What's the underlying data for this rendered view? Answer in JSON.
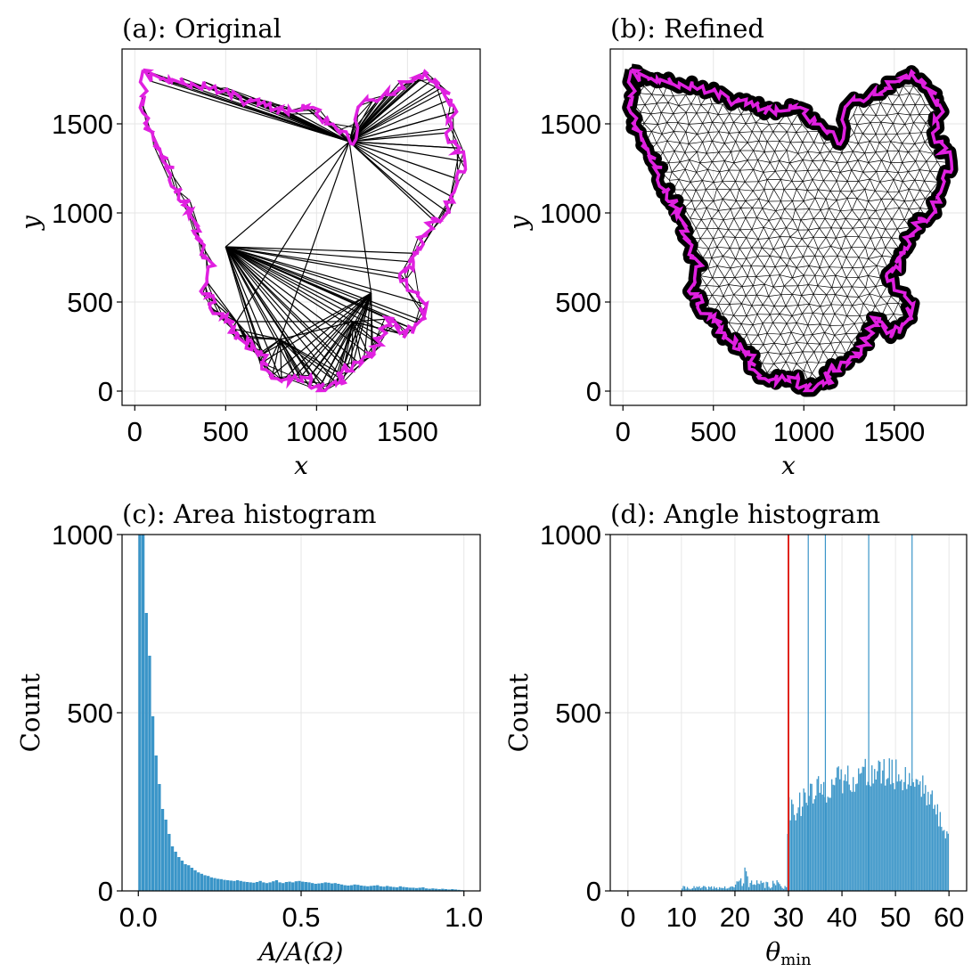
{
  "chart_data": [
    {
      "panel": "a",
      "type": "mesh",
      "title": "(a): Original",
      "xlabel": "x",
      "ylabel": "y",
      "xlim": [
        -70,
        1900
      ],
      "ylim": [
        -80,
        1920
      ],
      "xticks": [
        0,
        500,
        1000,
        1500
      ],
      "yticks": [
        0,
        500,
        1000,
        1500
      ],
      "boundary_color": "#e020e0",
      "edge_color": "#000000",
      "interior_points": [
        [
          1180,
          1400
        ],
        [
          500,
          810
        ],
        [
          1300,
          550
        ],
        [
          1200,
          390
        ],
        [
          560,
          390
        ],
        [
          800,
          290
        ]
      ]
    },
    {
      "panel": "b",
      "type": "mesh",
      "title": "(b): Refined",
      "xlabel": "x",
      "ylabel": "y",
      "xlim": [
        -70,
        1900
      ],
      "ylim": [
        -80,
        1920
      ],
      "xticks": [
        0,
        500,
        1000,
        1500
      ],
      "yticks": [
        0,
        500,
        1000,
        1500
      ],
      "boundary_color": "#e020e0",
      "edge_color": "#000000"
    },
    {
      "panel": "c",
      "type": "bar",
      "title": "(c): Area histogram",
      "xlabel": "A/A(Ω)",
      "ylabel": "Count",
      "xlim": [
        -0.05,
        1.05
      ],
      "ylim": [
        0,
        1000
      ],
      "xticks": [
        0.0,
        0.5,
        1.0
      ],
      "xtick_labels": [
        "0.0",
        "0.5",
        "1.0"
      ],
      "yticks": [
        0,
        500,
        1000
      ],
      "bar_color": "#3a95c8",
      "bin_width": 0.01,
      "x": [
        0.0,
        0.01,
        0.02,
        0.03,
        0.04,
        0.05,
        0.06,
        0.07,
        0.08,
        0.09,
        0.1,
        0.11,
        0.12,
        0.13,
        0.14,
        0.15,
        0.16,
        0.17,
        0.18,
        0.19,
        0.2,
        0.21,
        0.22,
        0.23,
        0.24,
        0.25,
        0.26,
        0.27,
        0.28,
        0.29,
        0.3,
        0.31,
        0.32,
        0.33,
        0.34,
        0.35,
        0.36,
        0.37,
        0.38,
        0.39,
        0.4,
        0.41,
        0.42,
        0.43,
        0.44,
        0.45,
        0.46,
        0.47,
        0.48,
        0.49,
        0.5,
        0.51,
        0.52,
        0.53,
        0.54,
        0.55,
        0.56,
        0.57,
        0.58,
        0.59,
        0.6,
        0.61,
        0.62,
        0.63,
        0.64,
        0.65,
        0.66,
        0.67,
        0.68,
        0.69,
        0.7,
        0.71,
        0.72,
        0.73,
        0.74,
        0.75,
        0.76,
        0.77,
        0.78,
        0.79,
        0.8,
        0.81,
        0.82,
        0.83,
        0.84,
        0.85,
        0.86,
        0.87,
        0.88,
        0.89,
        0.9,
        0.91,
        0.92,
        0.93,
        0.94,
        0.95,
        0.96,
        0.97,
        0.98,
        0.99
      ],
      "values": [
        1000,
        1000,
        780,
        660,
        490,
        380,
        300,
        230,
        200,
        160,
        125,
        110,
        95,
        85,
        75,
        72,
        65,
        58,
        52,
        48,
        44,
        42,
        38,
        36,
        34,
        33,
        31,
        30,
        29,
        28,
        30,
        28,
        26,
        25,
        24,
        23,
        25,
        28,
        24,
        22,
        24,
        27,
        30,
        24,
        22,
        25,
        26,
        24,
        27,
        28,
        26,
        25,
        24,
        22,
        20,
        21,
        22,
        24,
        23,
        21,
        22,
        20,
        18,
        16,
        15,
        16,
        18,
        17,
        15,
        14,
        13,
        14,
        15,
        16,
        13,
        12,
        14,
        12,
        11,
        10,
        13,
        11,
        10,
        9,
        9,
        8,
        9,
        10,
        7,
        6,
        7,
        6,
        5,
        6,
        5,
        4,
        5,
        4,
        3,
        2
      ]
    },
    {
      "panel": "d",
      "type": "bar",
      "title": "(d): Angle histogram",
      "xlabel": "θmin",
      "ylabel": "Count",
      "xlim": [
        -3.3,
        63.3
      ],
      "ylim": [
        0,
        1000
      ],
      "xticks": [
        0,
        10,
        20,
        30,
        40,
        50,
        60
      ],
      "yticks": [
        0,
        500,
        1000
      ],
      "bar_color": "#3a95c8",
      "threshold_line": {
        "x": 30,
        "color": "#e0241b"
      },
      "spikes": [
        33.7,
        36.9,
        45.0,
        53.1
      ]
    }
  ]
}
